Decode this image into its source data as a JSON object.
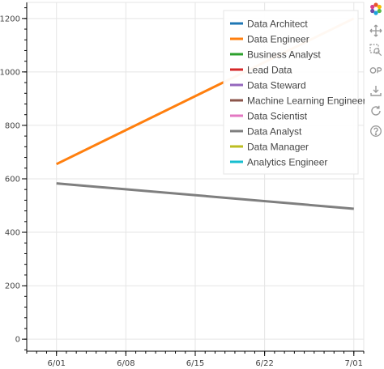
{
  "chart_data": {
    "type": "line",
    "title": "",
    "xlabel": "",
    "ylabel": "",
    "x_ticks": [
      "6/01",
      "6/08",
      "6/15",
      "6/22",
      "7/01"
    ],
    "x_dates": [
      "2024-06-01",
      "2024-07-01"
    ],
    "x_tick_dates": [
      "2024-06-01",
      "2024-06-08",
      "2024-06-15",
      "2024-06-22",
      "2024-07-01"
    ],
    "xlim": [
      "2024-05-29",
      "2024-07-02"
    ],
    "y_ticks": [
      "0",
      "200",
      "400",
      "600",
      "800",
      "1000",
      "1200"
    ],
    "ylim": [
      -45,
      1260
    ],
    "grid": true,
    "legend_position": "top-right",
    "series": [
      {
        "name": "Data Architect",
        "color": "#1f77b4",
        "values": []
      },
      {
        "name": "Data Engineer",
        "color": "#ff7f0e",
        "values": [
          655,
          1200
        ]
      },
      {
        "name": "Business Analyst",
        "color": "#2ca02c",
        "values": []
      },
      {
        "name": "Lead Data",
        "color": "#d62728",
        "values": []
      },
      {
        "name": "Data Steward",
        "color": "#9467bd",
        "values": []
      },
      {
        "name": "Machine Learning Engineer",
        "color": "#8c564b",
        "values": []
      },
      {
        "name": "Data Scientist",
        "color": "#e377c2",
        "values": []
      },
      {
        "name": "Data Analyst",
        "color": "#7f7f7f",
        "values": [
          583,
          488
        ]
      },
      {
        "name": "Data Manager",
        "color": "#bcbd22",
        "values": []
      },
      {
        "name": "Analytics Engineer",
        "color": "#17becf",
        "values": []
      }
    ]
  },
  "toolbar": {
    "tools": [
      {
        "name": "bokeh-logo-icon"
      },
      {
        "name": "pan-tool-icon"
      },
      {
        "name": "box-zoom-tool-icon"
      },
      {
        "name": "wheel-zoom-tool-icon"
      },
      {
        "name": "save-tool-icon"
      },
      {
        "name": "reset-tool-icon"
      },
      {
        "name": "help-tool-icon"
      }
    ]
  }
}
